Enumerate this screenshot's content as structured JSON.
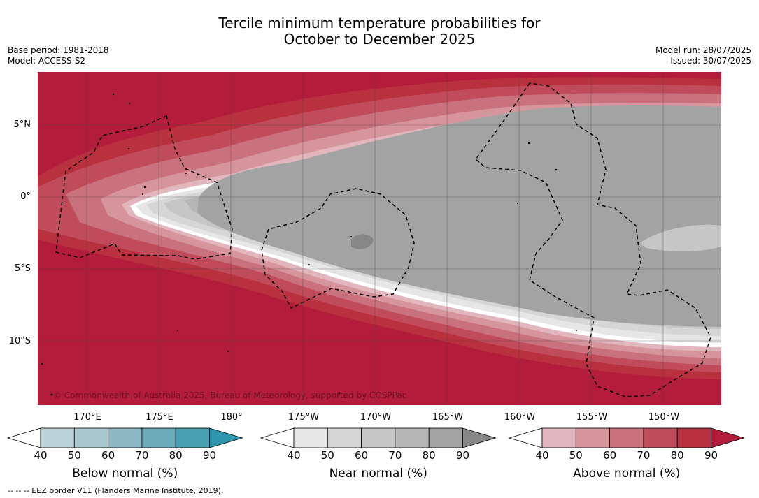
{
  "title": {
    "line1": "Tercile minimum temperature probabilities for",
    "line2": "October to December 2025"
  },
  "meta_left": {
    "base_period": "Base period: 1981-2018",
    "model": "Model: ACCESS-S2"
  },
  "meta_right": {
    "model_run": "Model run: 28/07/2025",
    "issued": "Issued: 30/07/2025"
  },
  "map": {
    "lat_labels": [
      "5°N",
      "0°",
      "5°S",
      "10°S"
    ],
    "lon_labels": [
      "170°E",
      "175°E",
      "180°",
      "175°W",
      "170°W",
      "165°W",
      "160°W",
      "155°W",
      "150°W"
    ],
    "copyright": "© Commonwealth of Australia 2025, Bureau of Meteorology, supported by COSPPac",
    "colors": {
      "above_90": "#b31c3b",
      "near_80": "#a3a3a3"
    }
  },
  "colorbars": [
    {
      "name": "below",
      "label": "Below normal (%)",
      "ticks": [
        "40",
        "50",
        "60",
        "70",
        "80",
        "90"
      ],
      "colors": [
        "#ffffff",
        "#bdd3da",
        "#a9c9cf",
        "#8cb8c3",
        "#6aacba",
        "#46a0b0",
        "#2f97ad"
      ]
    },
    {
      "name": "near",
      "label": "Near normal (%)",
      "ticks": [
        "40",
        "50",
        "60",
        "70",
        "80",
        "90"
      ],
      "colors": [
        "#ffffff",
        "#e6e6e6",
        "#d6d6d6",
        "#c6c6c6",
        "#b6b6b6",
        "#a3a3a3",
        "#868686"
      ]
    },
    {
      "name": "above",
      "label": "Above normal (%)",
      "ticks": [
        "40",
        "50",
        "60",
        "70",
        "80",
        "90"
      ],
      "colors": [
        "#ffffff",
        "#e1b6bc",
        "#d6959c",
        "#c9717c",
        "#bd4b5a",
        "#b6303f",
        "#b31c3b"
      ]
    }
  ],
  "footnote": "--  --  -- EEZ border V11 (Flanders Marine Institute, 2019)."
}
